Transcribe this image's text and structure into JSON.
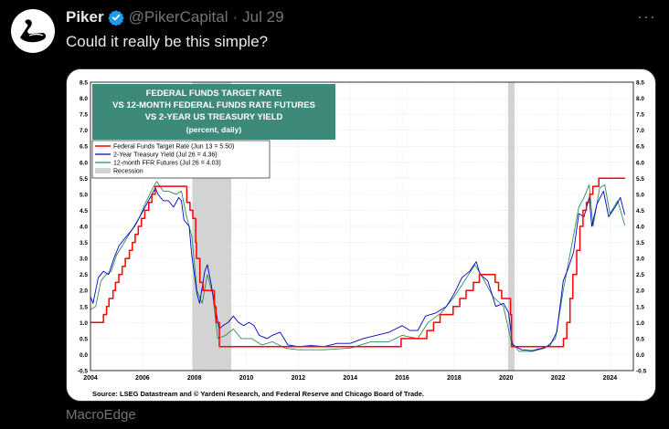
{
  "tweet": {
    "author_name": "Piker",
    "handle": "@PikerCapital",
    "separator": "·",
    "date": "Jul 29",
    "text": "Could it really be this simple?",
    "more_label": "···",
    "media_caption": "MacroEdge"
  },
  "chart_data": {
    "type": "line",
    "title_lines": [
      "FEDERAL FUNDS TARGET RATE",
      "VS 12-MONTH FEDERAL FUNDS RATE FUTURES",
      "VS 2-YEAR US TREASURY YIELD",
      "(percent, daily)"
    ],
    "source": "Source: LSEG Datastream and © Yardeni Research, and Federal Reserve and Chicago Board of Trade.",
    "x_ticks": [
      "2004",
      "2006",
      "2008",
      "2010",
      "2012",
      "2014",
      "2016",
      "2018",
      "2020",
      "2022",
      "2024"
    ],
    "y_ticks": [
      "8.5",
      "8.0",
      "7.5",
      "7.0",
      "6.5",
      "6.0",
      "5.5",
      "5.0",
      "4.5",
      "4.0",
      "3.5",
      "3.0",
      "2.5",
      "2.0",
      "1.5",
      "1.0",
      "0.5",
      "0.0",
      "-0.5"
    ],
    "xlim": [
      2004,
      2024.9
    ],
    "ylim": [
      -0.5,
      8.5
    ],
    "legend": {
      "placement": "top-left",
      "entries": [
        {
          "label": "Federal Funds Target Rate (Jun 13 = 5.50)",
          "color": "#ff0000",
          "kind": "line"
        },
        {
          "label": "2-Year Treasury Yield (Jul 26 = 4.36)",
          "color": "#0000cc",
          "kind": "line"
        },
        {
          "label": "12-month FFR Futures (Jul 26 = 4.03)",
          "color": "#2e8b57",
          "kind": "line"
        },
        {
          "label": "Recession",
          "color": "#d3d3d3",
          "kind": "box"
        }
      ]
    },
    "recessions": [
      [
        2007.92,
        2009.42
      ],
      [
        2020.08,
        2020.33
      ]
    ],
    "series": [
      {
        "name": "Federal Funds Target Rate",
        "color": "#ff0000",
        "step": true,
        "points": [
          [
            2004,
            1.0
          ],
          [
            2004.5,
            1.0
          ],
          [
            2004.5,
            1.25
          ],
          [
            2004.62,
            1.25
          ],
          [
            2004.62,
            1.5
          ],
          [
            2004.71,
            1.5
          ],
          [
            2004.71,
            1.75
          ],
          [
            2004.87,
            1.75
          ],
          [
            2004.87,
            2.0
          ],
          [
            2004.96,
            2.0
          ],
          [
            2004.96,
            2.25
          ],
          [
            2005.09,
            2.25
          ],
          [
            2005.09,
            2.5
          ],
          [
            2005.22,
            2.5
          ],
          [
            2005.22,
            2.75
          ],
          [
            2005.34,
            2.75
          ],
          [
            2005.34,
            3.0
          ],
          [
            2005.5,
            3.0
          ],
          [
            2005.5,
            3.25
          ],
          [
            2005.61,
            3.25
          ],
          [
            2005.61,
            3.5
          ],
          [
            2005.72,
            3.5
          ],
          [
            2005.72,
            3.75
          ],
          [
            2005.84,
            3.75
          ],
          [
            2005.84,
            4.0
          ],
          [
            2005.96,
            4.0
          ],
          [
            2005.96,
            4.25
          ],
          [
            2006.09,
            4.25
          ],
          [
            2006.09,
            4.5
          ],
          [
            2006.24,
            4.5
          ],
          [
            2006.24,
            4.75
          ],
          [
            2006.36,
            4.75
          ],
          [
            2006.36,
            5.0
          ],
          [
            2006.49,
            5.0
          ],
          [
            2006.49,
            5.25
          ],
          [
            2007.71,
            5.25
          ],
          [
            2007.71,
            4.75
          ],
          [
            2007.83,
            4.75
          ],
          [
            2007.83,
            4.5
          ],
          [
            2007.94,
            4.5
          ],
          [
            2007.94,
            4.25
          ],
          [
            2008.05,
            4.25
          ],
          [
            2008.05,
            3.5
          ],
          [
            2008.08,
            3.5
          ],
          [
            2008.08,
            3.0
          ],
          [
            2008.21,
            3.0
          ],
          [
            2008.21,
            2.25
          ],
          [
            2008.33,
            2.25
          ],
          [
            2008.33,
            2.0
          ],
          [
            2008.77,
            2.0
          ],
          [
            2008.77,
            1.5
          ],
          [
            2008.83,
            1.5
          ],
          [
            2008.83,
            1.0
          ],
          [
            2008.96,
            1.0
          ],
          [
            2008.96,
            0.25
          ],
          [
            2015.96,
            0.25
          ],
          [
            2015.96,
            0.5
          ],
          [
            2016.95,
            0.5
          ],
          [
            2016.95,
            0.75
          ],
          [
            2017.21,
            0.75
          ],
          [
            2017.21,
            1.0
          ],
          [
            2017.46,
            1.0
          ],
          [
            2017.46,
            1.25
          ],
          [
            2017.96,
            1.25
          ],
          [
            2017.96,
            1.5
          ],
          [
            2018.22,
            1.5
          ],
          [
            2018.22,
            1.75
          ],
          [
            2018.46,
            1.75
          ],
          [
            2018.46,
            2.0
          ],
          [
            2018.74,
            2.0
          ],
          [
            2018.74,
            2.25
          ],
          [
            2018.97,
            2.25
          ],
          [
            2018.97,
            2.5
          ],
          [
            2019.58,
            2.5
          ],
          [
            2019.58,
            2.25
          ],
          [
            2019.71,
            2.25
          ],
          [
            2019.71,
            2.0
          ],
          [
            2019.83,
            2.0
          ],
          [
            2019.83,
            1.75
          ],
          [
            2020.17,
            1.75
          ],
          [
            2020.17,
            1.25
          ],
          [
            2020.21,
            1.25
          ],
          [
            2020.21,
            0.25
          ],
          [
            2022.21,
            0.25
          ],
          [
            2022.21,
            0.5
          ],
          [
            2022.34,
            0.5
          ],
          [
            2022.34,
            1.0
          ],
          [
            2022.46,
            1.0
          ],
          [
            2022.46,
            1.75
          ],
          [
            2022.57,
            1.75
          ],
          [
            2022.57,
            2.5
          ],
          [
            2022.72,
            2.5
          ],
          [
            2022.72,
            3.25
          ],
          [
            2022.84,
            3.25
          ],
          [
            2022.84,
            4.0
          ],
          [
            2022.96,
            4.0
          ],
          [
            2022.96,
            4.5
          ],
          [
            2023.09,
            4.5
          ],
          [
            2023.09,
            4.75
          ],
          [
            2023.22,
            4.75
          ],
          [
            2023.22,
            5.0
          ],
          [
            2023.34,
            5.0
          ],
          [
            2023.34,
            5.25
          ],
          [
            2023.57,
            5.25
          ],
          [
            2023.57,
            5.5
          ],
          [
            2024.58,
            5.5
          ]
        ]
      },
      {
        "name": "2-Year Treasury Yield",
        "color": "#0000cc",
        "step": false,
        "points": [
          [
            2004.0,
            1.8
          ],
          [
            2004.1,
            1.6
          ],
          [
            2004.3,
            2.4
          ],
          [
            2004.5,
            2.6
          ],
          [
            2004.7,
            2.5
          ],
          [
            2004.9,
            3.0
          ],
          [
            2005.1,
            3.4
          ],
          [
            2005.3,
            3.6
          ],
          [
            2005.5,
            3.8
          ],
          [
            2005.7,
            4.0
          ],
          [
            2005.9,
            4.3
          ],
          [
            2006.1,
            4.6
          ],
          [
            2006.3,
            4.9
          ],
          [
            2006.5,
            5.2
          ],
          [
            2006.6,
            5.0
          ],
          [
            2006.8,
            4.8
          ],
          [
            2007.0,
            4.8
          ],
          [
            2007.2,
            4.6
          ],
          [
            2007.4,
            4.9
          ],
          [
            2007.5,
            4.8
          ],
          [
            2007.6,
            4.2
          ],
          [
            2007.8,
            4.0
          ],
          [
            2007.9,
            3.1
          ],
          [
            2008.0,
            2.5
          ],
          [
            2008.1,
            1.9
          ],
          [
            2008.2,
            1.6
          ],
          [
            2008.4,
            2.6
          ],
          [
            2008.5,
            2.8
          ],
          [
            2008.6,
            2.4
          ],
          [
            2008.8,
            1.5
          ],
          [
            2008.95,
            0.8
          ],
          [
            2009.1,
            0.9
          ],
          [
            2009.3,
            1.0
          ],
          [
            2009.5,
            1.2
          ],
          [
            2009.7,
            1.0
          ],
          [
            2009.9,
            0.9
          ],
          [
            2010.1,
            1.0
          ],
          [
            2010.3,
            0.9
          ],
          [
            2010.5,
            0.6
          ],
          [
            2010.8,
            0.5
          ],
          [
            2011.0,
            0.6
          ],
          [
            2011.3,
            0.7
          ],
          [
            2011.6,
            0.3
          ],
          [
            2012.0,
            0.25
          ],
          [
            2012.5,
            0.28
          ],
          [
            2013.0,
            0.25
          ],
          [
            2013.5,
            0.35
          ],
          [
            2014.0,
            0.35
          ],
          [
            2014.5,
            0.5
          ],
          [
            2015.0,
            0.6
          ],
          [
            2015.5,
            0.7
          ],
          [
            2016.0,
            0.9
          ],
          [
            2016.3,
            0.75
          ],
          [
            2016.6,
            0.75
          ],
          [
            2016.9,
            1.2
          ],
          [
            2017.3,
            1.3
          ],
          [
            2017.7,
            1.5
          ],
          [
            2018.0,
            1.9
          ],
          [
            2018.3,
            2.4
          ],
          [
            2018.6,
            2.6
          ],
          [
            2018.85,
            2.9
          ],
          [
            2019.0,
            2.5
          ],
          [
            2019.3,
            2.3
          ],
          [
            2019.6,
            1.5
          ],
          [
            2019.9,
            1.6
          ],
          [
            2020.1,
            1.3
          ],
          [
            2020.25,
            0.3
          ],
          [
            2020.6,
            0.15
          ],
          [
            2021.0,
            0.12
          ],
          [
            2021.4,
            0.2
          ],
          [
            2021.7,
            0.3
          ],
          [
            2021.95,
            0.7
          ],
          [
            2022.2,
            2.3
          ],
          [
            2022.4,
            2.7
          ],
          [
            2022.6,
            3.2
          ],
          [
            2022.8,
            4.4
          ],
          [
            2023.0,
            4.3
          ],
          [
            2023.2,
            4.9
          ],
          [
            2023.3,
            4.0
          ],
          [
            2023.5,
            4.7
          ],
          [
            2023.75,
            5.1
          ],
          [
            2023.95,
            4.3
          ],
          [
            2024.2,
            4.6
          ],
          [
            2024.4,
            4.9
          ],
          [
            2024.57,
            4.36
          ]
        ]
      },
      {
        "name": "12-month FFR Futures",
        "color": "#2e8b57",
        "step": false,
        "points": [
          [
            2004.0,
            1.4
          ],
          [
            2004.2,
            1.5
          ],
          [
            2004.4,
            2.3
          ],
          [
            2004.6,
            2.5
          ],
          [
            2004.8,
            2.6
          ],
          [
            2005.0,
            3.1
          ],
          [
            2005.3,
            3.5
          ],
          [
            2005.6,
            3.9
          ],
          [
            2005.9,
            4.3
          ],
          [
            2006.1,
            4.7
          ],
          [
            2006.4,
            5.2
          ],
          [
            2006.55,
            5.4
          ],
          [
            2006.8,
            5.1
          ],
          [
            2007.0,
            5.1
          ],
          [
            2007.3,
            5.0
          ],
          [
            2007.5,
            5.1
          ],
          [
            2007.7,
            4.3
          ],
          [
            2007.9,
            3.7
          ],
          [
            2008.1,
            2.0
          ],
          [
            2008.3,
            1.6
          ],
          [
            2008.5,
            2.5
          ],
          [
            2008.7,
            1.9
          ],
          [
            2008.9,
            0.5
          ],
          [
            2009.2,
            0.6
          ],
          [
            2009.5,
            0.8
          ],
          [
            2009.8,
            0.5
          ],
          [
            2010.2,
            0.5
          ],
          [
            2010.6,
            0.3
          ],
          [
            2011.0,
            0.4
          ],
          [
            2011.5,
            0.2
          ],
          [
            2012.0,
            0.15
          ],
          [
            2013.0,
            0.15
          ],
          [
            2014.0,
            0.2
          ],
          [
            2014.8,
            0.4
          ],
          [
            2015.5,
            0.4
          ],
          [
            2016.0,
            0.6
          ],
          [
            2016.6,
            0.5
          ],
          [
            2017.0,
            1.0
          ],
          [
            2017.5,
            1.3
          ],
          [
            2018.0,
            1.8
          ],
          [
            2018.4,
            2.3
          ],
          [
            2018.8,
            2.8
          ],
          [
            2019.1,
            2.4
          ],
          [
            2019.5,
            1.8
          ],
          [
            2019.9,
            1.5
          ],
          [
            2020.2,
            0.4
          ],
          [
            2020.5,
            0.1
          ],
          [
            2021.0,
            0.1
          ],
          [
            2021.5,
            0.2
          ],
          [
            2021.9,
            0.5
          ],
          [
            2022.2,
            2.0
          ],
          [
            2022.5,
            3.3
          ],
          [
            2022.8,
            4.6
          ],
          [
            2023.0,
            4.9
          ],
          [
            2023.2,
            5.3
          ],
          [
            2023.35,
            4.0
          ],
          [
            2023.6,
            5.2
          ],
          [
            2023.8,
            5.3
          ],
          [
            2024.0,
            4.4
          ],
          [
            2024.3,
            4.8
          ],
          [
            2024.57,
            4.03
          ]
        ]
      }
    ]
  }
}
